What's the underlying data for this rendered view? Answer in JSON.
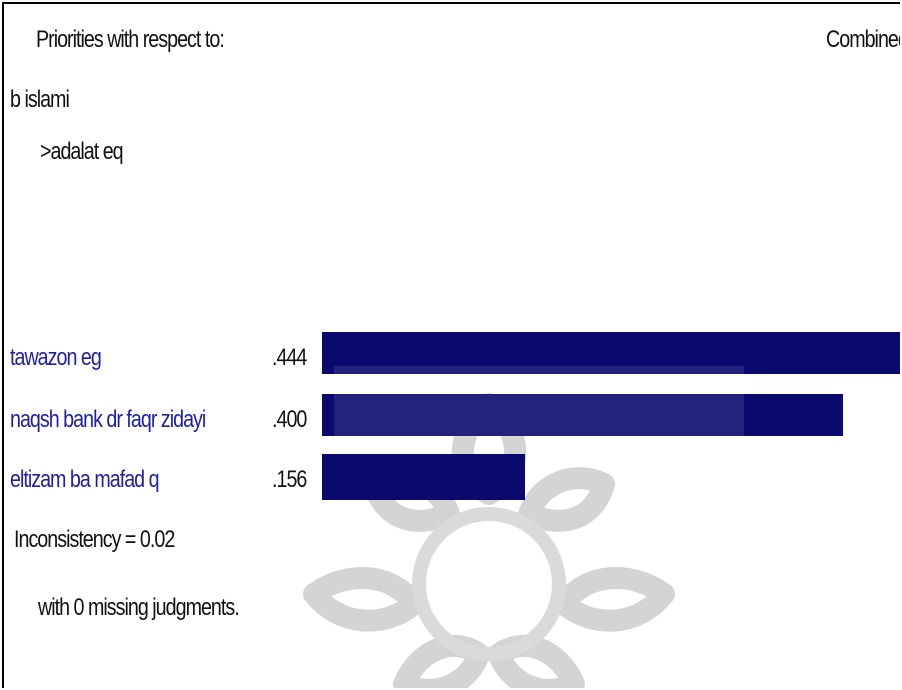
{
  "header": {
    "title": "Priorities with respect to:",
    "mode": "Combined"
  },
  "hierarchy": {
    "goal": "b islami",
    "node": ">adalat eq"
  },
  "priorities": [
    {
      "name": "tawazon eg",
      "value_label": ".444",
      "value": 0.444
    },
    {
      "name": "naqsh bank dr faqr zidayi",
      "value_label": ".400",
      "value": 0.4
    },
    {
      "name": "eltizam ba mafad q",
      "value_label": ".156",
      "value": 0.156
    }
  ],
  "inconsistency": {
    "label": "Inconsistency = 0.02",
    "missing": "with 0  missing judgments."
  },
  "colors": {
    "bar": "#0a0a6e",
    "label_blue": "#1f1fa5",
    "watermark": "#d0d0d0"
  },
  "watermark": {
    "icon": "rosette-logo-watermark"
  }
}
